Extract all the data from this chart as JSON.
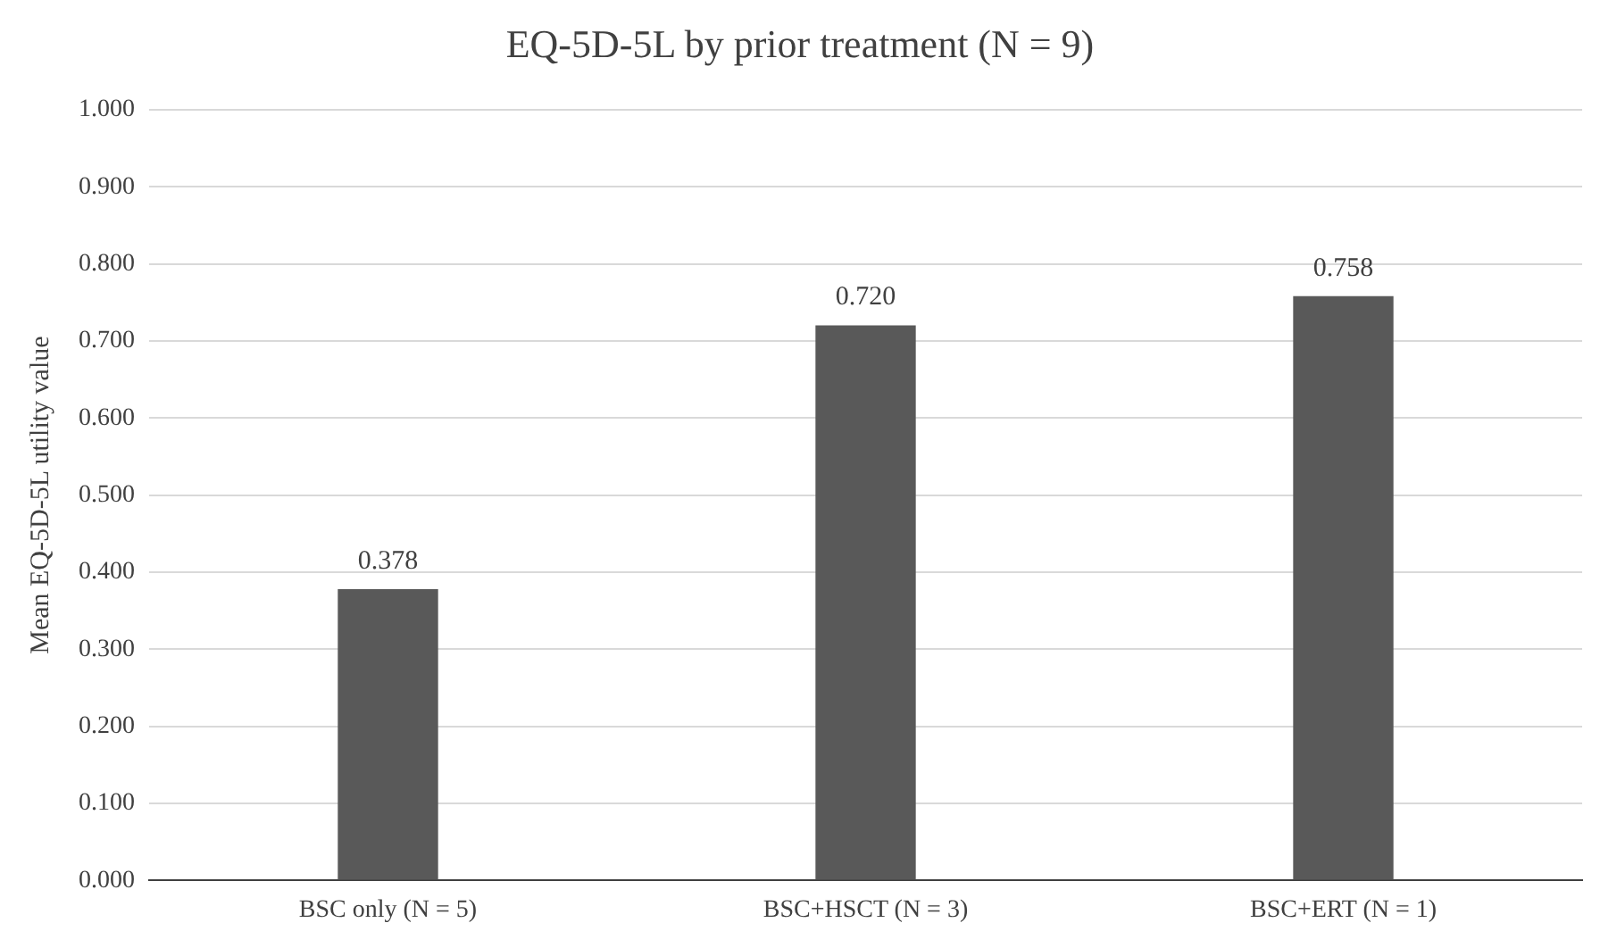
{
  "chart_data": {
    "type": "bar",
    "title": "EQ-5D-5L by prior treatment (N = 9)",
    "ylabel": "Mean EQ-5D-5L utility value",
    "categories": [
      "BSC only (N = 5)",
      "BSC+HSCT (N = 3)",
      "BSC+ERT (N = 1)"
    ],
    "values": [
      0.378,
      0.72,
      0.758
    ],
    "value_labels": [
      "0.378",
      "0.720",
      "0.758"
    ],
    "color": "#595959",
    "ylim": [
      0,
      1
    ],
    "yticks": [
      {
        "value": 0,
        "label": "0.000"
      },
      {
        "value": 0.1,
        "label": "0.100"
      },
      {
        "value": 0.2,
        "label": "0.200"
      },
      {
        "value": 0.3,
        "label": "0.300"
      },
      {
        "value": 0.4,
        "label": "0.400"
      },
      {
        "value": 0.5,
        "label": "0.500"
      },
      {
        "value": 0.6,
        "label": "0.600"
      },
      {
        "value": 0.7,
        "label": "0.700"
      },
      {
        "value": 0.8,
        "label": "0.800"
      },
      {
        "value": 0.9,
        "label": "0.900"
      },
      {
        "value": 1,
        "label": "1.000"
      }
    ],
    "grid": "y"
  }
}
